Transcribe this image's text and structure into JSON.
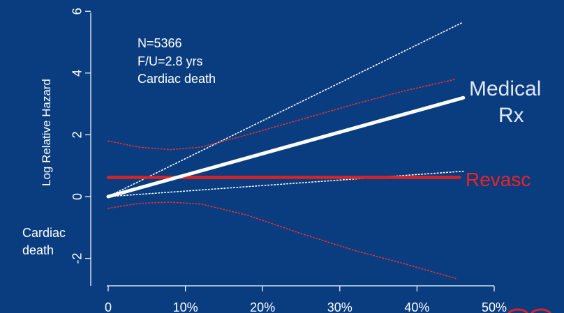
{
  "chart_data": {
    "type": "line",
    "ylabel": "Log Relative Hazard",
    "xlabel": "",
    "xlim": [
      0,
      50
    ],
    "ylim": [
      -3,
      6
    ],
    "x_ticks": [
      {
        "value": 0,
        "label": "0"
      },
      {
        "value": 10,
        "label": "10%"
      },
      {
        "value": 20,
        "label": "20%"
      },
      {
        "value": 30,
        "label": "30%"
      },
      {
        "value": 40,
        "label": "40%"
      },
      {
        "value": 50,
        "label": "50%"
      }
    ],
    "y_ticks": [
      {
        "value": -2,
        "label": "-2"
      },
      {
        "value": 0,
        "label": "0"
      },
      {
        "value": 2,
        "label": "2"
      },
      {
        "value": 4,
        "label": "4"
      },
      {
        "value": 6,
        "label": "6"
      }
    ],
    "annotation_lines": [
      "N=5366",
      "F/U=2.8 yrs",
      "Cardiac death"
    ],
    "side_label_lines": [
      "Cardiac",
      "death"
    ],
    "series": [
      {
        "name": "Medical Rx",
        "label_lines": [
          "Medical",
          "Rx"
        ],
        "color": "#ffffff",
        "style": "solid",
        "x": [
          0,
          46
        ],
        "y": [
          0,
          3.2
        ]
      },
      {
        "name": "Revasc",
        "label_lines": [
          "Revasc"
        ],
        "color": "#dd2222",
        "style": "solid",
        "x": [
          0,
          45.5
        ],
        "y": [
          0.62,
          0.62
        ]
      }
    ],
    "bands": [
      {
        "color": "#ffffff",
        "style": "dotted",
        "x": [
          0,
          46
        ],
        "y": [
          0,
          5.65
        ]
      },
      {
        "color": "#ffffff",
        "style": "dotted",
        "x": [
          0,
          46
        ],
        "y": [
          0,
          0.82
        ]
      },
      {
        "color": "#dd3333",
        "style": "dotted",
        "x": [
          0,
          4,
          8,
          12,
          18,
          25,
          32,
          38,
          45
        ],
        "y": [
          1.8,
          1.6,
          1.52,
          1.6,
          2.0,
          2.5,
          3.0,
          3.4,
          3.8
        ]
      },
      {
        "color": "#dd3333",
        "style": "dotted",
        "x": [
          0,
          4,
          8,
          12,
          18,
          25,
          32,
          38,
          45
        ],
        "y": [
          -0.38,
          -0.22,
          -0.18,
          -0.24,
          -0.6,
          -1.2,
          -1.75,
          -2.15,
          -2.65
        ]
      }
    ]
  }
}
